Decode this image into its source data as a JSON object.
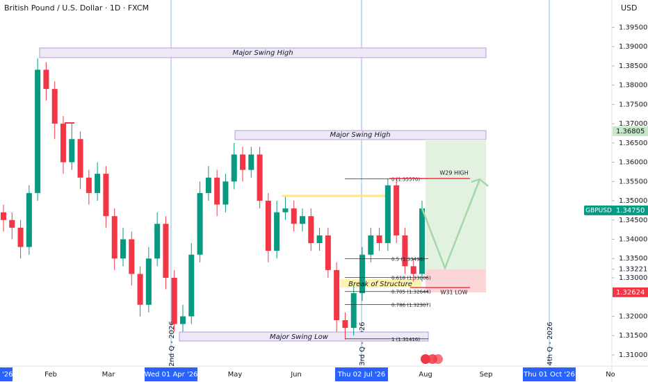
{
  "header": {
    "title": "British Pound / U.S. Dollar · 1D · FXCM",
    "currency": "USD"
  },
  "chart_data": {
    "type": "candlestick",
    "up_color": "#089981",
    "down_color": "#f23645",
    "ylim": [
      1.3071,
      1.4021
    ],
    "yticks": [
      {
        "value": 1.395,
        "label": "1.39500"
      },
      {
        "value": 1.39,
        "label": "1.39000"
      },
      {
        "value": 1.385,
        "label": "1.38500"
      },
      {
        "value": 1.38,
        "label": "1.38000"
      },
      {
        "value": 1.375,
        "label": "1.37500"
      },
      {
        "value": 1.37,
        "label": "1.37000"
      },
      {
        "value": 1.365,
        "label": "1.36500"
      },
      {
        "value": 1.36,
        "label": "1.36000"
      },
      {
        "value": 1.355,
        "label": "1.35500"
      },
      {
        "value": 1.35,
        "label": "1.35000"
      },
      {
        "value": 1.345,
        "label": "1.34500"
      },
      {
        "value": 1.34,
        "label": "1.34000"
      },
      {
        "value": 1.335,
        "label": "1.33500"
      },
      {
        "value": 1.33221,
        "label": "1.33221"
      },
      {
        "value": 1.33,
        "label": "1.33000"
      },
      {
        "value": 1.32,
        "label": "1.32000"
      },
      {
        "value": 1.315,
        "label": "1.31500"
      },
      {
        "value": 1.31,
        "label": "1.31000"
      }
    ],
    "candles": [
      [
        1.347,
        1.349,
        1.342,
        1.345
      ],
      [
        1.345,
        1.347,
        1.34,
        1.343
      ],
      [
        1.343,
        1.345,
        1.335,
        1.338
      ],
      [
        1.338,
        1.354,
        1.336,
        1.352
      ],
      [
        1.352,
        1.387,
        1.35,
        1.384
      ],
      [
        1.384,
        1.386,
        1.376,
        1.379
      ],
      [
        1.379,
        1.381,
        1.366,
        1.37
      ],
      [
        1.37,
        1.372,
        1.357,
        1.36
      ],
      [
        1.36,
        1.37,
        1.358,
        1.366
      ],
      [
        1.366,
        1.368,
        1.353,
        1.356
      ],
      [
        1.356,
        1.358,
        1.349,
        1.352
      ],
      [
        1.352,
        1.36,
        1.35,
        1.357
      ],
      [
        1.357,
        1.359,
        1.343,
        1.346
      ],
      [
        1.346,
        1.348,
        1.332,
        1.335
      ],
      [
        1.335,
        1.343,
        1.333,
        1.34
      ],
      [
        1.34,
        1.342,
        1.328,
        1.331
      ],
      [
        1.331,
        1.333,
        1.32,
        1.323
      ],
      [
        1.323,
        1.338,
        1.321,
        1.335
      ],
      [
        1.335,
        1.347,
        1.333,
        1.344
      ],
      [
        1.344,
        1.346,
        1.327,
        1.33
      ],
      [
        1.33,
        1.332,
        1.316,
        1.318
      ],
      [
        1.318,
        1.323,
        1.316,
        1.32
      ],
      [
        1.32,
        1.339,
        1.318,
        1.336
      ],
      [
        1.336,
        1.355,
        1.334,
        1.352
      ],
      [
        1.352,
        1.359,
        1.35,
        1.356
      ],
      [
        1.356,
        1.358,
        1.346,
        1.349
      ],
      [
        1.349,
        1.357,
        1.347,
        1.355
      ],
      [
        1.355,
        1.365,
        1.353,
        1.362
      ],
      [
        1.362,
        1.364,
        1.355,
        1.358
      ],
      [
        1.358,
        1.364,
        1.356,
        1.362
      ],
      [
        1.362,
        1.364,
        1.348,
        1.35
      ],
      [
        1.35,
        1.352,
        1.334,
        1.337
      ],
      [
        1.337,
        1.35,
        1.335,
        1.347
      ],
      [
        1.347,
        1.351,
        1.345,
        1.348
      ],
      [
        1.348,
        1.35,
        1.342,
        1.344
      ],
      [
        1.344,
        1.348,
        1.342,
        1.346
      ],
      [
        1.346,
        1.348,
        1.337,
        1.339
      ],
      [
        1.339,
        1.343,
        1.337,
        1.341
      ],
      [
        1.341,
        1.343,
        1.33,
        1.332
      ],
      [
        1.332,
        1.334,
        1.316,
        1.319
      ],
      [
        1.319,
        1.321,
        1.314,
        1.317
      ],
      [
        1.317,
        1.328,
        1.315,
        1.326
      ],
      [
        1.326,
        1.338,
        1.324,
        1.336
      ],
      [
        1.336,
        1.343,
        1.334,
        1.341
      ],
      [
        1.341,
        1.343,
        1.337,
        1.339
      ],
      [
        1.339,
        1.3557,
        1.337,
        1.354
      ],
      [
        1.354,
        1.356,
        1.339,
        1.341
      ],
      [
        1.341,
        1.343,
        1.331,
        1.333
      ],
      [
        1.333,
        1.335,
        1.329,
        1.331
      ],
      [
        1.331,
        1.35,
        1.329,
        1.348
      ]
    ],
    "x_labels": [
      "'26",
      "Feb",
      "Mar",
      "Wed 01 Apr '26",
      "May",
      "Jun",
      "Thu 02 Jul '26",
      "Aug",
      "Sep",
      "Thu 01 Oct '26",
      "No"
    ],
    "quarters": [
      "2nd Q - 2026",
      "3rd Q - 2026",
      "4th Q - 2026"
    ],
    "annotations": [
      "Major Swing High",
      "Major Swing High",
      "Major Swing Low",
      "Break of Structure",
      "W29 HIGH",
      "W31 LOW"
    ],
    "fib_levels": [
      {
        "label": "0 (1.35570)",
        "value": 1.3557
      },
      {
        "label": "0.5 (1.33498)",
        "value": 1.33498
      },
      {
        "label": "0.618 (1.33006)",
        "value": 1.33006
      },
      {
        "label": "0.705 (1.32644)",
        "value": 1.32644
      },
      {
        "label": "0.786 (1.32307)",
        "value": 1.32307
      },
      {
        "label": "1 (1.31416)",
        "value": 1.31416
      }
    ],
    "price_labels": [
      {
        "label": "1.36805",
        "value": 1.36805
      },
      {
        "label": "1.34750",
        "value": 1.3475
      },
      {
        "label": "1.32624",
        "value": 1.32624
      }
    ],
    "symbol": "GBPUSD"
  }
}
